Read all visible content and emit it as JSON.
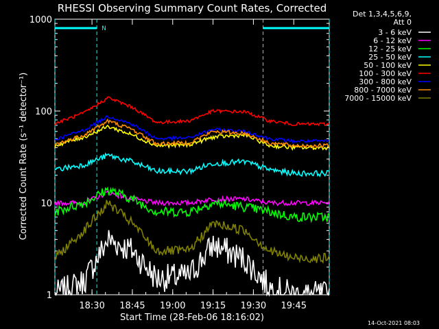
{
  "chart_data": {
    "type": "line",
    "title": "RHESSI Observing Summary Count Rates, Corrected",
    "ylabel": "Corrected Count Rate (s⁻¹ detector⁻¹)",
    "xlabel": "Start Time (28-Feb-06 18:16:02)",
    "y_scale": "log",
    "ylim": [
      1,
      1000
    ],
    "xlim_minutes": [
      18.27,
      19.97
    ],
    "y_ticks": [
      "1",
      "10",
      "100",
      "1000"
    ],
    "x_ticks": [
      "18:30",
      "18:45",
      "19:00",
      "19:15",
      "19:30",
      "19:45"
    ],
    "legend_header": [
      "Det 1,3,4,5,6,9,",
      "Att 0"
    ],
    "legend_position": "top-right",
    "footer_date": "14-Oct-2021 08:03",
    "night_marker": "N",
    "series": [
      {
        "name": "3 - 6 keV",
        "color": "#ffffff",
        "x": [
          18.27,
          18.45,
          18.6,
          18.75,
          18.9,
          19.1,
          19.25,
          19.45,
          19.6,
          19.75,
          19.97
        ],
        "values": [
          1.0,
          1.4,
          4.0,
          3.0,
          1.5,
          1.6,
          3.5,
          2.4,
          1.2,
          1.0,
          1.0
        ]
      },
      {
        "name": "6 - 12 keV",
        "color": "#ff00ff",
        "x": [
          18.27,
          18.45,
          18.6,
          18.75,
          18.9,
          19.1,
          19.25,
          19.45,
          19.6,
          19.75,
          19.97
        ],
        "values": [
          10,
          10,
          13,
          11,
          10,
          10,
          11,
          11,
          10,
          10,
          10
        ]
      },
      {
        "name": "12 - 25 keV",
        "color": "#00ff00",
        "x": [
          18.27,
          18.45,
          18.6,
          18.75,
          18.9,
          19.1,
          19.25,
          19.45,
          19.6,
          19.75,
          19.97
        ],
        "values": [
          8,
          10,
          14,
          11,
          8,
          8,
          10,
          9,
          8,
          7,
          7
        ]
      },
      {
        "name": "25 - 50 keV",
        "color": "#00ffff",
        "x": [
          18.27,
          18.45,
          18.6,
          18.75,
          18.9,
          19.1,
          19.25,
          19.45,
          19.6,
          19.75,
          19.97
        ],
        "values": [
          23,
          26,
          33,
          28,
          22,
          22,
          27,
          28,
          23,
          21,
          21
        ]
      },
      {
        "name": "50 - 100 keV",
        "color": "#ffff00",
        "x": [
          18.27,
          18.45,
          18.6,
          18.75,
          18.9,
          19.1,
          19.25,
          19.45,
          19.6,
          19.75,
          19.97
        ],
        "values": [
          42,
          52,
          68,
          55,
          42,
          43,
          52,
          55,
          42,
          40,
          40
        ]
      },
      {
        "name": "100 - 300 keV",
        "color": "#ff0000",
        "x": [
          18.27,
          18.45,
          18.6,
          18.75,
          18.9,
          19.1,
          19.25,
          19.45,
          19.6,
          19.75,
          19.97
        ],
        "values": [
          73,
          95,
          140,
          110,
          75,
          78,
          100,
          98,
          78,
          72,
          72
        ]
      },
      {
        "name": "300 - 800 keV",
        "color": "#0000ff",
        "x": [
          18.27,
          18.45,
          18.6,
          18.75,
          18.9,
          19.1,
          19.25,
          19.45,
          19.6,
          19.75,
          19.97
        ],
        "values": [
          49,
          62,
          88,
          72,
          50,
          51,
          63,
          60,
          50,
          47,
          47
        ]
      },
      {
        "name": "800 - 7000 keV",
        "color": "#ff8c00",
        "x": [
          18.27,
          18.45,
          18.6,
          18.75,
          18.9,
          19.1,
          19.25,
          19.45,
          19.6,
          19.75,
          19.97
        ],
        "values": [
          43,
          55,
          78,
          63,
          44,
          45,
          60,
          57,
          45,
          42,
          42
        ]
      },
      {
        "name": "7000 - 15000 keV",
        "color": "#808000",
        "x": [
          18.27,
          18.45,
          18.6,
          18.75,
          18.9,
          19.1,
          19.25,
          19.45,
          19.6,
          19.75,
          19.97
        ],
        "values": [
          2.5,
          5,
          10,
          6,
          3,
          3,
          6,
          5,
          3,
          2.5,
          2.5
        ]
      }
    ]
  }
}
